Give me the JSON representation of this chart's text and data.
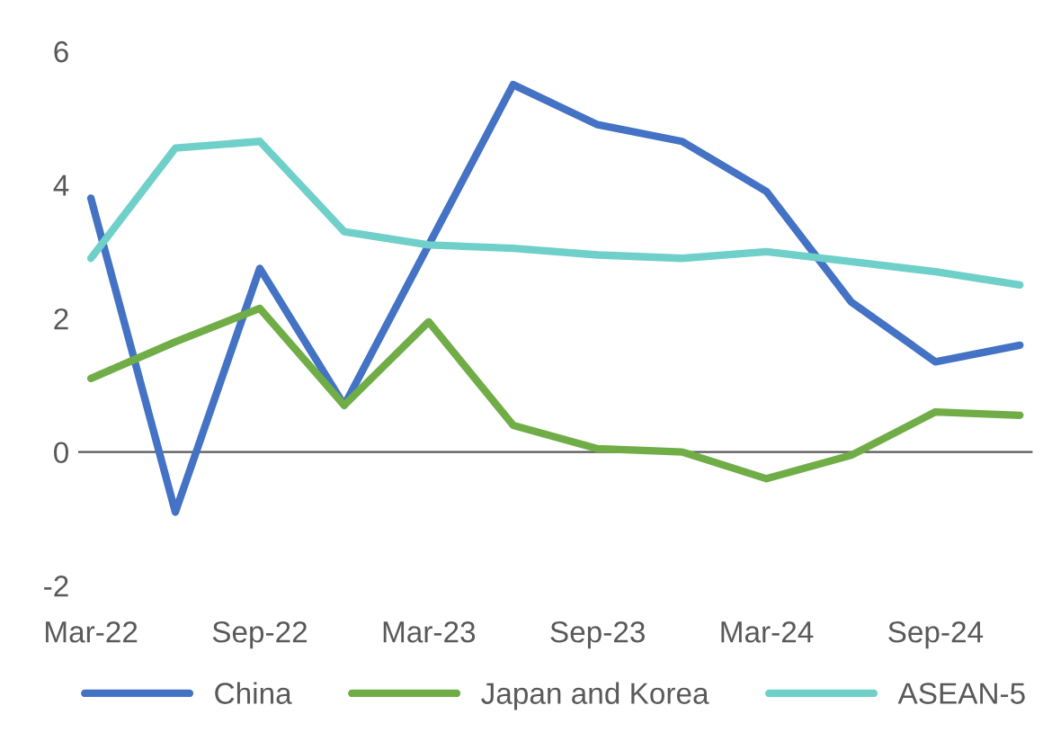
{
  "chart_data": {
    "type": "line",
    "categories": [
      "Mar-22",
      null,
      "Sep-22",
      null,
      "Mar-23",
      null,
      "Sep-23",
      null,
      "Mar-24",
      null,
      "Sep-24",
      null
    ],
    "series": [
      {
        "name": "China",
        "color": "#4472c4",
        "values": [
          3.8,
          -0.9,
          2.75,
          0.7,
          3.1,
          5.5,
          4.9,
          4.65,
          3.9,
          2.25,
          1.35,
          1.6
        ]
      },
      {
        "name": "Japan and Korea",
        "color": "#70ad47",
        "values": [
          1.1,
          1.65,
          2.15,
          0.7,
          1.95,
          0.4,
          0.05,
          0.0,
          -0.4,
          -0.05,
          0.6,
          0.55
        ]
      },
      {
        "name": "ASEAN-5",
        "color": "#6fcfc9",
        "values": [
          2.9,
          4.55,
          4.65,
          3.3,
          3.1,
          3.05,
          2.95,
          2.9,
          3.0,
          2.85,
          2.7,
          2.5
        ]
      }
    ],
    "ylim": [
      -2,
      6
    ],
    "yticks": [
      {
        "value": -2,
        "label": "-2"
      },
      0,
      2,
      4,
      6
    ],
    "ref_lines": [
      {
        "axis": "y",
        "value": 0,
        "color": "#595959"
      }
    ],
    "grid": false,
    "legend": "bottom",
    "marker": "none",
    "line_style": "solid"
  }
}
